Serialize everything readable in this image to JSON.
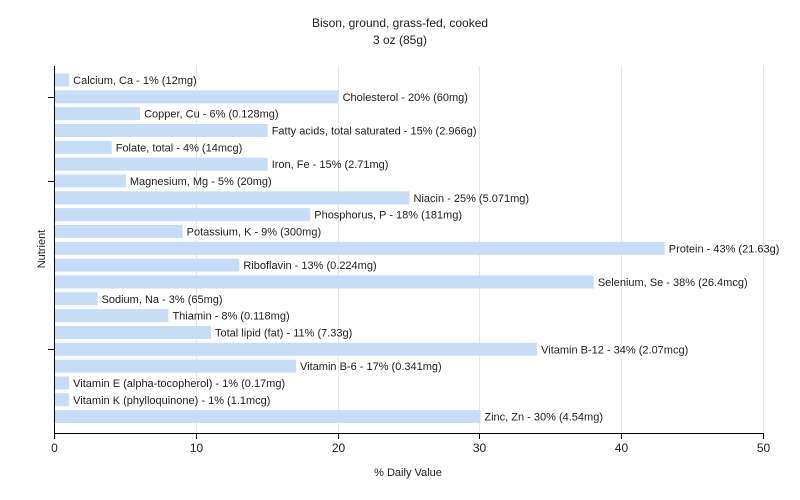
{
  "chart_data": {
    "type": "bar",
    "orientation": "horizontal",
    "title": "Bison, ground, grass-fed, cooked",
    "subtitle": "3 oz (85g)",
    "xlabel": "% Daily Value",
    "ylabel": "Nutrient",
    "xlim": [
      0,
      50
    ],
    "xticks": [
      0,
      10,
      20,
      30,
      40,
      50
    ],
    "grid": true,
    "bar_color": "#c6dcf7",
    "categories": [
      "Calcium, Ca",
      "Cholesterol",
      "Copper, Cu",
      "Fatty acids, total saturated",
      "Folate, total",
      "Iron, Fe",
      "Magnesium, Mg",
      "Niacin",
      "Phosphorus, P",
      "Potassium, K",
      "Protein",
      "Riboflavin",
      "Selenium, Se",
      "Sodium, Na",
      "Thiamin",
      "Total lipid (fat)",
      "Vitamin B-12",
      "Vitamin B-6",
      "Vitamin E (alpha-tocopherol)",
      "Vitamin K (phylloquinone)",
      "Zinc, Zn"
    ],
    "values": [
      1,
      20,
      6,
      15,
      4,
      15,
      5,
      25,
      18,
      9,
      43,
      13,
      38,
      3,
      8,
      11,
      34,
      17,
      1,
      1,
      30
    ],
    "labels": [
      "Calcium, Ca - 1% (12mg)",
      "Cholesterol - 20% (60mg)",
      "Copper, Cu - 6% (0.128mg)",
      "Fatty acids, total saturated - 15% (2.966g)",
      "Folate, total - 4% (14mcg)",
      "Iron, Fe - 15% (2.71mg)",
      "Magnesium, Mg - 5% (20mg)",
      "Niacin - 25% (5.071mg)",
      "Phosphorus, P - 18% (181mg)",
      "Potassium, K - 9% (300mg)",
      "Protein - 43% (21.63g)",
      "Riboflavin - 13% (0.224mg)",
      "Selenium, Se - 38% (26.4mcg)",
      "Sodium, Na - 3% (65mg)",
      "Thiamin - 8% (0.118mg)",
      "Total lipid (fat) - 11% (7.33g)",
      "Vitamin B-12 - 34% (2.07mcg)",
      "Vitamin B-6 - 17% (0.341mg)",
      "Vitamin E (alpha-tocopherol) - 1% (0.17mg)",
      "Vitamin K (phylloquinone) - 1% (1.1mcg)",
      "Zinc, Zn - 30% (4.54mg)"
    ]
  }
}
